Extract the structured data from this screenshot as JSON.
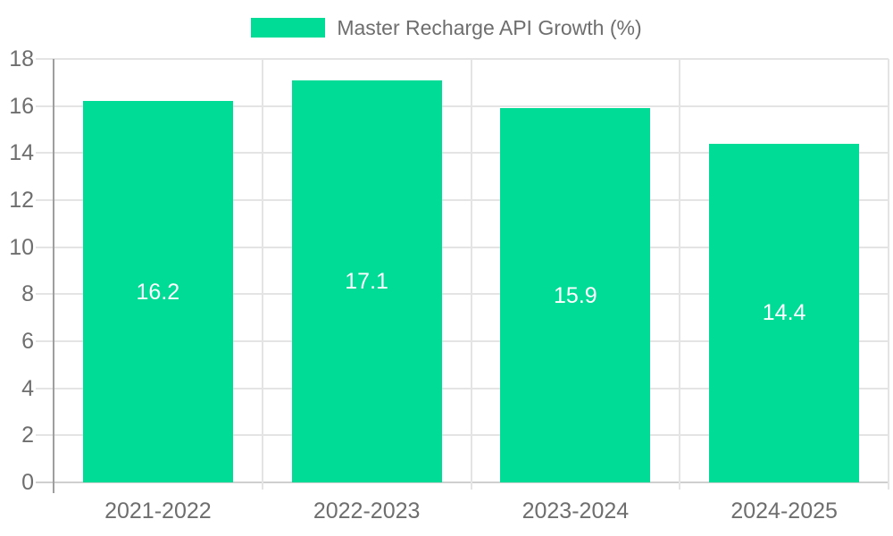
{
  "legend": {
    "label": "Master Recharge API Growth (%)"
  },
  "chart_data": {
    "type": "bar",
    "title": "",
    "xlabel": "",
    "ylabel": "",
    "categories": [
      "2021-2022",
      "2022-2023",
      "2023-2024",
      "2024-2025"
    ],
    "values": [
      16.2,
      17.1,
      15.9,
      14.4
    ],
    "data_labels": [
      "16.2",
      "17.1",
      "15.9",
      "14.4"
    ],
    "ylim": [
      0,
      18
    ],
    "yticks": [
      0,
      2,
      4,
      6,
      8,
      10,
      12,
      14,
      16,
      18
    ],
    "grid": true,
    "legend_position": "top",
    "colors": {
      "bar": "#00DC96",
      "data_label": "#FFFFFF",
      "axis_text": "#6E6E6E",
      "gridline": "#E4E4E4",
      "zero_line": "#CFCFCF",
      "axis_line": "#9E9E9E"
    }
  }
}
